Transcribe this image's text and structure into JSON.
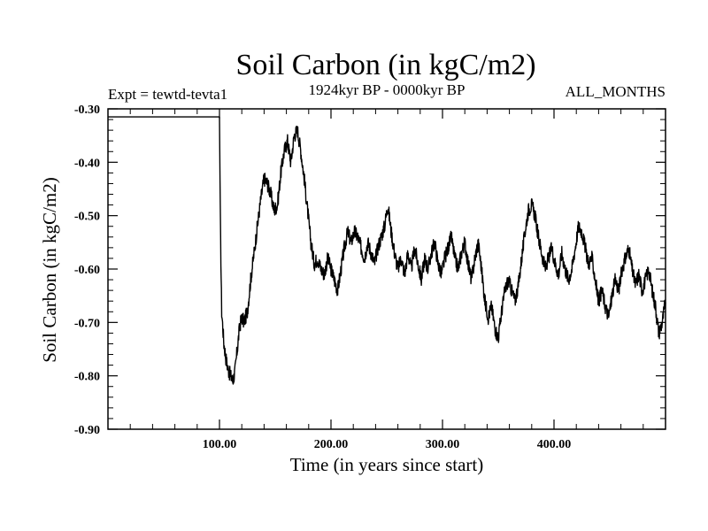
{
  "chart_data": {
    "type": "line",
    "title": "Soil Carbon (in kgC/m2)",
    "subtitle": "1924kyr BP - 0000kyr BP",
    "expt_label": "Expt = tewtd-tevta1",
    "months_label": "ALL_MONTHS",
    "xlabel": "Time (in years since start)",
    "ylabel": "Soil Carbon (in kgC/m2)",
    "xlim": [
      0,
      500
    ],
    "ylim": [
      -0.9,
      -0.3
    ],
    "x_ticks": [
      100,
      200,
      300,
      400
    ],
    "x_tick_labels": [
      "100.00",
      "200.00",
      "300.00",
      "400.00"
    ],
    "y_ticks": [
      -0.3,
      -0.4,
      -0.5,
      -0.6,
      -0.7,
      -0.8,
      -0.9
    ],
    "y_tick_labels": [
      "-0.30",
      "-0.40",
      "-0.50",
      "-0.60",
      "-0.70",
      "-0.80",
      "-0.90"
    ],
    "series": [
      {
        "name": "Soil Carbon",
        "x": [
          0,
          99,
          100,
          101,
          102,
          104,
          106,
          108,
          110,
          112,
          114,
          116,
          118,
          120,
          122,
          125,
          128,
          131,
          134,
          137,
          140,
          143,
          146,
          149,
          152,
          155,
          158,
          161,
          164,
          167,
          170,
          173,
          176,
          179,
          182,
          185,
          188,
          191,
          194,
          197,
          200,
          203,
          206,
          209,
          212,
          215,
          218,
          221,
          224,
          227,
          230,
          233,
          236,
          239,
          242,
          245,
          248,
          251,
          254,
          257,
          260,
          263,
          266,
          269,
          272,
          275,
          278,
          281,
          284,
          287,
          290,
          293,
          296,
          299,
          302,
          305,
          308,
          311,
          314,
          317,
          320,
          323,
          326,
          329,
          332,
          335,
          338,
          341,
          344,
          347,
          350,
          353,
          356,
          359,
          362,
          365,
          368,
          371,
          374,
          377,
          380,
          383,
          386,
          389,
          392,
          395,
          398,
          401,
          404,
          407,
          410,
          413,
          416,
          419,
          422,
          425,
          428,
          431,
          434,
          437,
          440,
          443,
          446,
          449,
          452,
          455,
          458,
          461,
          464,
          467,
          470,
          473,
          476,
          479,
          482,
          485,
          488,
          491,
          494,
          497,
          500
        ],
        "values": [
          -0.315,
          -0.315,
          -0.315,
          -0.55,
          -0.68,
          -0.74,
          -0.77,
          -0.79,
          -0.8,
          -0.81,
          -0.79,
          -0.75,
          -0.71,
          -0.69,
          -0.7,
          -0.68,
          -0.62,
          -0.57,
          -0.52,
          -0.47,
          -0.43,
          -0.44,
          -0.46,
          -0.49,
          -0.48,
          -0.42,
          -0.38,
          -0.36,
          -0.4,
          -0.35,
          -0.34,
          -0.38,
          -0.43,
          -0.49,
          -0.55,
          -0.59,
          -0.58,
          -0.6,
          -0.61,
          -0.58,
          -0.6,
          -0.62,
          -0.64,
          -0.6,
          -0.56,
          -0.53,
          -0.55,
          -0.53,
          -0.54,
          -0.56,
          -0.58,
          -0.55,
          -0.57,
          -0.59,
          -0.56,
          -0.54,
          -0.52,
          -0.48,
          -0.53,
          -0.57,
          -0.6,
          -0.58,
          -0.61,
          -0.57,
          -0.6,
          -0.56,
          -0.59,
          -0.62,
          -0.58,
          -0.6,
          -0.57,
          -0.55,
          -0.59,
          -0.61,
          -0.58,
          -0.56,
          -0.54,
          -0.58,
          -0.6,
          -0.57,
          -0.55,
          -0.59,
          -0.62,
          -0.58,
          -0.55,
          -0.6,
          -0.66,
          -0.69,
          -0.67,
          -0.71,
          -0.73,
          -0.68,
          -0.64,
          -0.62,
          -0.64,
          -0.66,
          -0.63,
          -0.58,
          -0.53,
          -0.49,
          -0.48,
          -0.5,
          -0.54,
          -0.57,
          -0.6,
          -0.58,
          -0.56,
          -0.59,
          -0.61,
          -0.57,
          -0.6,
          -0.62,
          -0.6,
          -0.56,
          -0.52,
          -0.53,
          -0.56,
          -0.59,
          -0.58,
          -0.62,
          -0.66,
          -0.64,
          -0.67,
          -0.69,
          -0.65,
          -0.62,
          -0.64,
          -0.6,
          -0.58,
          -0.56,
          -0.6,
          -0.63,
          -0.61,
          -0.64,
          -0.62,
          -0.6,
          -0.64,
          -0.67,
          -0.72,
          -0.7,
          -0.66
        ]
      }
    ]
  }
}
